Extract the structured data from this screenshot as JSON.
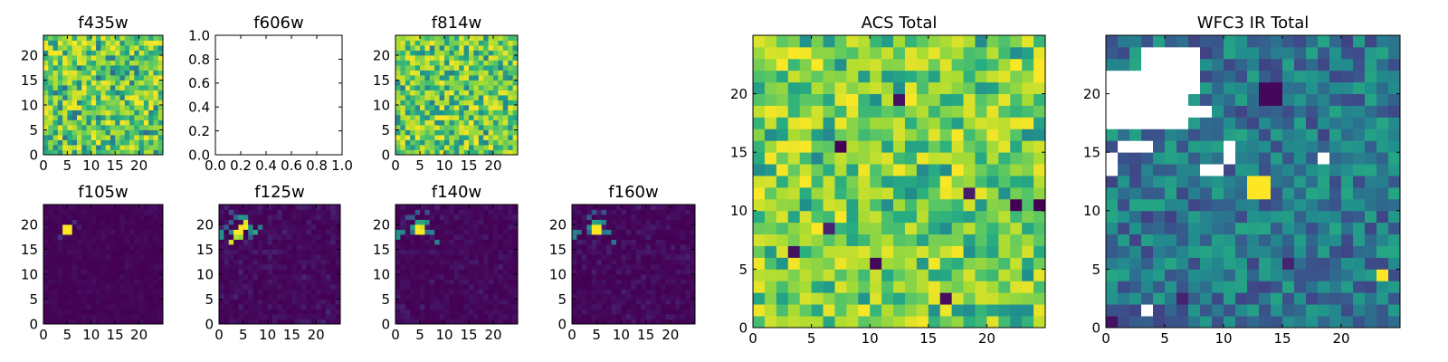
{
  "figure": {
    "colormap": "viridis",
    "colors": {
      "low": "#440154",
      "high": "#fde725",
      "empty": "#ffffff",
      "axis": "#000000"
    }
  },
  "chart_data": [
    {
      "id": "f435w",
      "type": "heatmap",
      "title": "f435w",
      "rows": 24,
      "cols": 25,
      "xlim": [
        0,
        25
      ],
      "ylim": [
        0,
        24
      ],
      "xticks": [
        0,
        5,
        10,
        15,
        20
      ],
      "yticks": [
        0,
        5,
        10,
        15,
        20
      ],
      "fill": "random-noise",
      "value_range": [
        0.35,
        1.0
      ],
      "seed": 11
    },
    {
      "id": "f606w",
      "type": "empty-axes",
      "title": "f606w",
      "xlim": [
        0,
        1
      ],
      "ylim": [
        0,
        1
      ],
      "xticks": [
        "0.0",
        "0.2",
        "0.4",
        "0.6",
        "0.8",
        "1.0"
      ],
      "yticks": [
        "0.0",
        "0.2",
        "0.4",
        "0.6",
        "0.8",
        "1.0"
      ]
    },
    {
      "id": "f814w",
      "type": "heatmap",
      "title": "f814w",
      "rows": 24,
      "cols": 25,
      "xlim": [
        0,
        25
      ],
      "ylim": [
        0,
        24
      ],
      "xticks": [
        0,
        5,
        10,
        15,
        20
      ],
      "yticks": [
        0,
        5,
        10,
        15,
        20
      ],
      "fill": "random-noise",
      "value_range": [
        0.4,
        1.0
      ],
      "seed": 23
    },
    {
      "id": "f105w",
      "type": "heatmap",
      "title": "f105w",
      "rows": 24,
      "cols": 25,
      "xlim": [
        0,
        25
      ],
      "ylim": [
        0,
        24
      ],
      "xticks": [
        0,
        5,
        10,
        15,
        20
      ],
      "yticks": [
        0,
        5,
        10,
        15,
        20
      ],
      "fill": "dark",
      "value_range": [
        0.0,
        0.05
      ],
      "seed": 31,
      "hot_pixels": [
        [
          4,
          18,
          1.0
        ],
        [
          5,
          18,
          1.0
        ],
        [
          4,
          19,
          1.0
        ],
        [
          5,
          19,
          1.0
        ],
        [
          3,
          17,
          0.15
        ],
        [
          6,
          20,
          0.12
        ],
        [
          7,
          19,
          0.08
        ]
      ]
    },
    {
      "id": "f125w",
      "type": "heatmap",
      "title": "f125w",
      "rows": 24,
      "cols": 25,
      "xlim": [
        0,
        25
      ],
      "ylim": [
        0,
        24
      ],
      "xticks": [
        0,
        5,
        10,
        15,
        20
      ],
      "yticks": [
        0,
        5,
        10,
        15,
        20
      ],
      "fill": "dark",
      "value_range": [
        0.0,
        0.12
      ],
      "seed": 47,
      "hot_pixels": [
        [
          3,
          18,
          1.0
        ],
        [
          4,
          18,
          1.0
        ],
        [
          4,
          19,
          1.0
        ],
        [
          5,
          19,
          1.0
        ],
        [
          5,
          20,
          0.95
        ],
        [
          3,
          17,
          0.9
        ],
        [
          4,
          17,
          0.85
        ],
        [
          2,
          16,
          0.95
        ],
        [
          4,
          21,
          0.55
        ],
        [
          5,
          21,
          0.5
        ],
        [
          6,
          18,
          0.45
        ],
        [
          6,
          19,
          0.5
        ],
        [
          7,
          18,
          0.6
        ],
        [
          8,
          19,
          0.4
        ],
        [
          0,
          17,
          0.5
        ],
        [
          0,
          18,
          0.5
        ],
        [
          1,
          19,
          0.3
        ],
        [
          2,
          20,
          0.3
        ],
        [
          3,
          21,
          0.35
        ],
        [
          2,
          22,
          0.25
        ],
        [
          6,
          17,
          0.3
        ],
        [
          2,
          18,
          0.45
        ]
      ]
    },
    {
      "id": "f140w",
      "type": "heatmap",
      "title": "f140w",
      "rows": 24,
      "cols": 25,
      "xlim": [
        0,
        25
      ],
      "ylim": [
        0,
        24
      ],
      "xticks": [
        0,
        5,
        10,
        15,
        20
      ],
      "yticks": [
        0,
        5,
        10,
        15,
        20
      ],
      "fill": "dark",
      "value_range": [
        0.0,
        0.1
      ],
      "seed": 59,
      "hot_pixels": [
        [
          4,
          18,
          1.0
        ],
        [
          5,
          18,
          1.0
        ],
        [
          4,
          19,
          1.0
        ],
        [
          5,
          19,
          0.95
        ],
        [
          4,
          20,
          0.6
        ],
        [
          5,
          20,
          0.6
        ],
        [
          3,
          19,
          0.55
        ],
        [
          6,
          20,
          0.5
        ],
        [
          0,
          17,
          0.5
        ],
        [
          0,
          18,
          0.5
        ],
        [
          1,
          18,
          0.45
        ],
        [
          6,
          18,
          0.4
        ],
        [
          7,
          18,
          0.45
        ],
        [
          8,
          16,
          0.45
        ],
        [
          3,
          21,
          0.3
        ],
        [
          2,
          21,
          0.25
        ],
        [
          4,
          22,
          0.3
        ],
        [
          6,
          22,
          0.25
        ],
        [
          3,
          18,
          0.4
        ]
      ]
    },
    {
      "id": "f160w",
      "type": "heatmap",
      "title": "f160w",
      "rows": 24,
      "cols": 25,
      "xlim": [
        0,
        25
      ],
      "ylim": [
        0,
        24
      ],
      "xticks": [
        0,
        5,
        10,
        15,
        20
      ],
      "yticks": [
        0,
        5,
        10,
        15,
        20
      ],
      "fill": "dark",
      "value_range": [
        0.0,
        0.1
      ],
      "seed": 67,
      "hot_pixels": [
        [
          4,
          18,
          1.0
        ],
        [
          5,
          18,
          1.0
        ],
        [
          4,
          19,
          1.0
        ],
        [
          5,
          19,
          1.0
        ],
        [
          4,
          20,
          0.6
        ],
        [
          5,
          20,
          0.55
        ],
        [
          3,
          19,
          0.5
        ],
        [
          6,
          20,
          0.45
        ],
        [
          0,
          17,
          0.45
        ],
        [
          0,
          18,
          0.45
        ],
        [
          1,
          18,
          0.4
        ],
        [
          6,
          18,
          0.4
        ],
        [
          7,
          18,
          0.45
        ],
        [
          8,
          16,
          0.4
        ],
        [
          3,
          21,
          0.3
        ],
        [
          4,
          22,
          0.28
        ],
        [
          6,
          22,
          0.25
        ],
        [
          3,
          18,
          0.35
        ]
      ]
    },
    {
      "id": "acs-total",
      "type": "heatmap",
      "title": "ACS Total",
      "rows": 25,
      "cols": 25,
      "xlim": [
        0,
        25
      ],
      "ylim": [
        0,
        25
      ],
      "xticks": [
        0,
        5,
        10,
        15,
        20
      ],
      "yticks": [
        0,
        5,
        10,
        15,
        20
      ],
      "fill": "random-noise",
      "value_range": [
        0.45,
        1.0
      ],
      "seed": 83,
      "hot_pixels": [
        [
          7,
          15,
          0.0
        ],
        [
          3,
          6,
          0.05
        ],
        [
          10,
          5,
          0.02
        ],
        [
          16,
          2,
          0.04
        ],
        [
          22,
          10,
          0.0
        ],
        [
          18,
          11,
          0.08
        ],
        [
          24,
          10,
          0.0
        ],
        [
          12,
          19,
          0.05
        ],
        [
          6,
          8,
          0.1
        ]
      ]
    },
    {
      "id": "wfc3-ir-total",
      "type": "heatmap",
      "title": "WFC3 IR Total",
      "rows": 25,
      "cols": 25,
      "xlim": [
        0,
        25
      ],
      "ylim": [
        0,
        25
      ],
      "xticks": [
        0,
        5,
        10,
        15,
        20
      ],
      "yticks": [
        0,
        5,
        10,
        15,
        20
      ],
      "fill": "blocky-medium",
      "value_range": [
        0.2,
        0.6
      ],
      "seed": 97,
      "hot_pixels": [
        [
          12,
          12,
          1.0
        ],
        [
          13,
          12,
          1.0
        ],
        [
          12,
          11,
          1.0
        ],
        [
          13,
          11,
          1.0
        ],
        [
          23,
          4,
          1.0
        ],
        [
          13,
          19,
          0.02
        ],
        [
          14,
          19,
          0.02
        ],
        [
          13,
          20,
          0.02
        ],
        [
          14,
          20,
          0.02
        ],
        [
          0,
          0,
          0.05
        ],
        [
          6,
          2,
          0.1
        ],
        [
          15,
          5,
          0.1
        ]
      ],
      "nan_regions": [
        [
          0,
          17,
          7,
          20
        ],
        [
          0,
          20,
          8,
          22
        ],
        [
          3,
          22,
          8,
          24
        ],
        [
          1,
          15,
          4,
          16
        ],
        [
          0,
          13,
          1,
          15
        ],
        [
          8,
          13,
          10,
          14
        ],
        [
          10,
          14,
          11,
          16
        ],
        [
          18,
          14,
          19,
          15
        ],
        [
          3,
          1,
          4,
          2
        ],
        [
          7,
          18,
          9,
          19
        ]
      ]
    }
  ]
}
